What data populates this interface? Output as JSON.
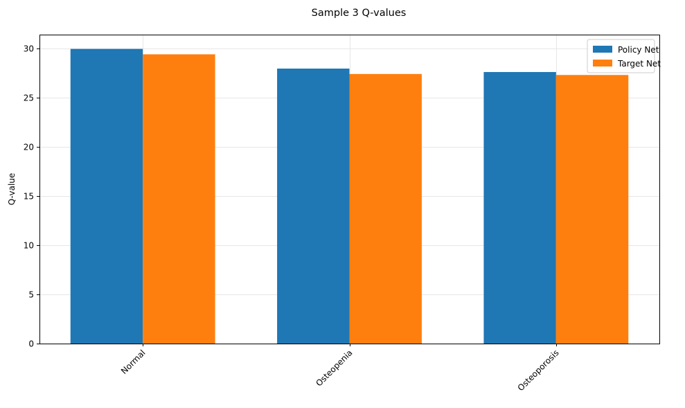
{
  "chart_data": {
    "type": "bar",
    "title": "Sample 3 Q-values",
    "xlabel": "",
    "ylabel": "Q-value",
    "categories": [
      "Normal",
      "Osteopenia",
      "Osteoporosis"
    ],
    "series": [
      {
        "name": "Policy Net",
        "values": [
          29.95,
          27.95,
          27.6
        ],
        "color": "#1f77b4"
      },
      {
        "name": "Target Net",
        "values": [
          29.4,
          27.4,
          27.3
        ],
        "color": "#ff7f0e"
      }
    ],
    "ylim": [
      0,
      31.4
    ],
    "yticks": [
      0,
      5,
      10,
      15,
      20,
      25,
      30
    ],
    "grid": true,
    "legend_position": "top-right",
    "x_tick_rotation": 45
  }
}
